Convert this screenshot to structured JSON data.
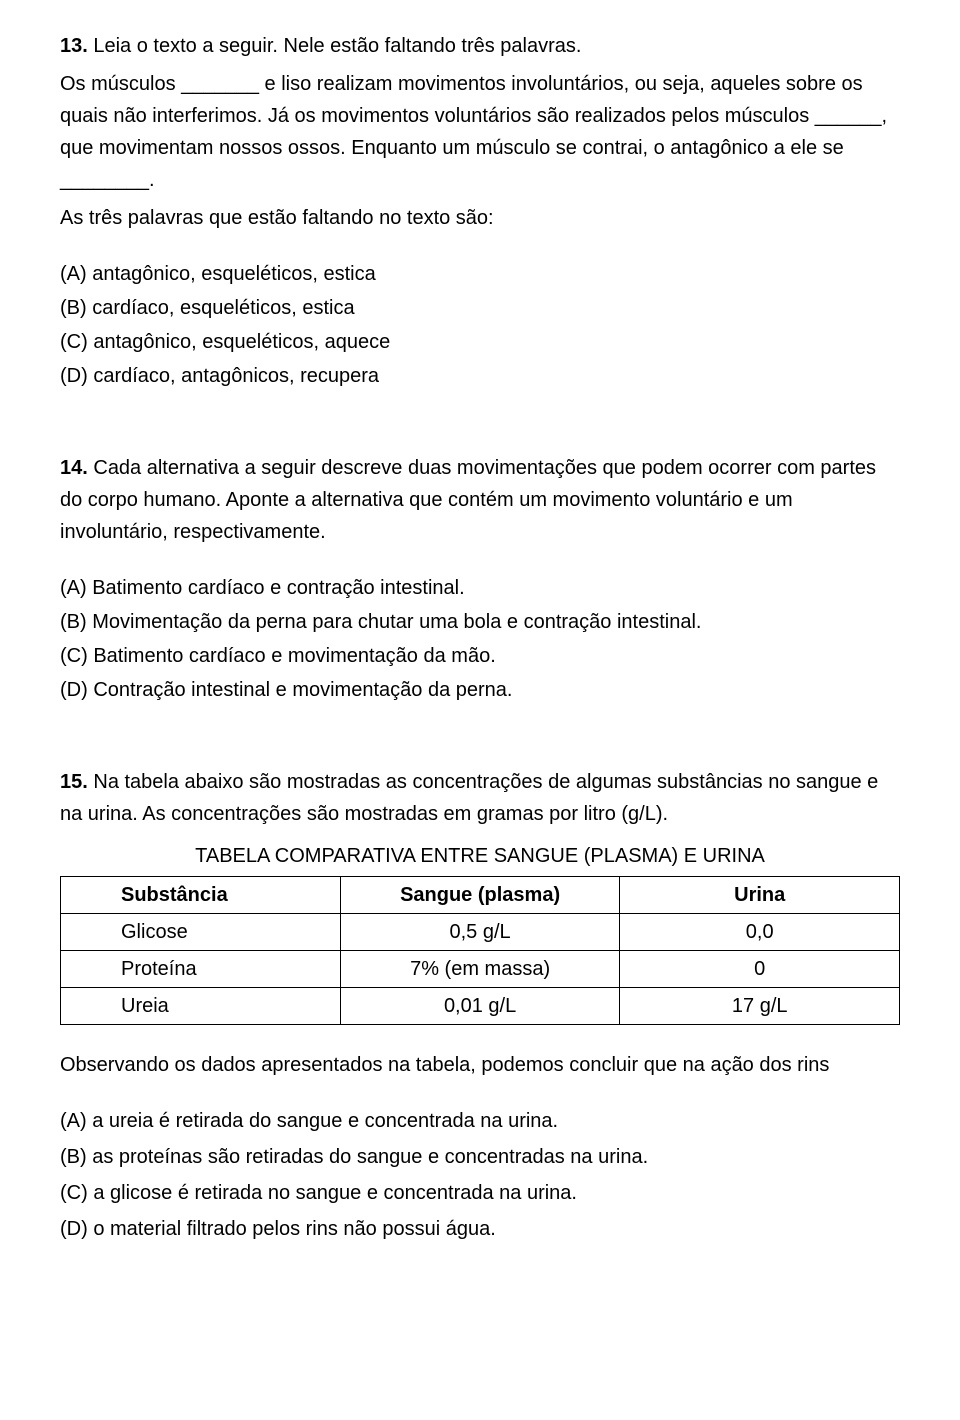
{
  "q13": {
    "number": "13.",
    "title_rest": " Leia o texto a seguir. Nele estão faltando três palavras.",
    "line1": "Os músculos _______ e liso realizam movimentos involuntários, ou seja, aqueles sobre os quais não interferimos. Já os movimentos voluntários são realizados pelos músculos ______, que movimentam nossos ossos. Enquanto um músculo se contrai, o antagônico a ele se ________.",
    "line2": "As três palavras que estão faltando no texto são:",
    "opts": {
      "a": "(A) antagônico, esqueléticos, estica",
      "b": "(B) cardíaco, esqueléticos, estica",
      "c": "(C) antagônico, esqueléticos, aquece",
      "d": "(D) cardíaco, antagônicos, recupera"
    }
  },
  "q14": {
    "number": "14.",
    "title_rest": " Cada alternativa a seguir descreve duas movimentações que podem ocorrer com partes do corpo humano. Aponte a alternativa que contém um movimento voluntário e um involuntário, respectivamente.",
    "opts": {
      "a": "(A) Batimento cardíaco e contração intestinal.",
      "b": "(B) Movimentação da perna para chutar uma bola e contração intestinal.",
      "c": "(C) Batimento cardíaco e movimentação da mão.",
      "d": "(D) Contração intestinal e movimentação da perna."
    }
  },
  "q15": {
    "number": "15.",
    "title_rest": " Na tabela abaixo  são mostradas as concentrações de algumas substâncias no sangue e na urina.  As concentrações são mostradas em gramas por litro (g/L).",
    "table_title": "TABELA COMPARATIVA ENTRE SANGUE (PLASMA) E URINA",
    "headers": {
      "c1": "Substância",
      "c2": "Sangue (plasma)",
      "c3": "Urina"
    },
    "rows": [
      {
        "c1": "Glicose",
        "c2": "0,5 g/L",
        "c3": "0,0"
      },
      {
        "c1": "Proteína",
        "c2": "7% (em massa)",
        "c3": "0"
      },
      {
        "c1": "Ureia",
        "c2": "0,01 g/L",
        "c3": "17 g/L"
      }
    ],
    "obs": "Observando os dados apresentados na tabela, podemos concluir que na ação dos rins",
    "opts": {
      "a": "(A) a ureia é retirada do sangue e concentrada na urina.",
      "b": "(B) as proteínas são retiradas do sangue e concentradas na urina.",
      "c": "(C) a glicose é retirada no sangue e concentrada na urina.",
      "d": "(D) o material filtrado pelos rins não possui água."
    }
  }
}
